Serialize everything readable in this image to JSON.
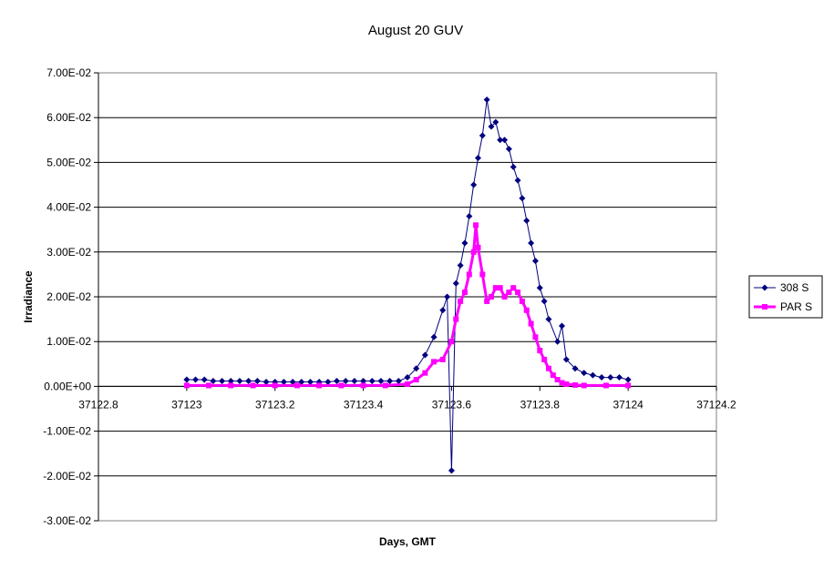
{
  "chart_data": {
    "type": "scatter",
    "title": "August 20 GUV",
    "xlabel": "Days, GMT",
    "ylabel": "Irradiance",
    "xlim": [
      37122.8,
      37124.2
    ],
    "ylim": [
      -0.03,
      0.07
    ],
    "x_ticks": [
      37122.8,
      37123,
      37123.2,
      37123.4,
      37123.6,
      37123.8,
      37124,
      37124.2
    ],
    "x_tick_labels": [
      "37122.8",
      "37123",
      "37123.2",
      "37123.4",
      "37123.6",
      "37123.8",
      "37124",
      "37124.2"
    ],
    "y_ticks": [
      0.07,
      0.06,
      0.05,
      0.04,
      0.03,
      0.02,
      0.01,
      0,
      -0.01,
      -0.02,
      -0.03
    ],
    "y_tick_labels": [
      "7.00E-02",
      "6.00E-02",
      "5.00E-02",
      "4.00E-02",
      "3.00E-02",
      "2.00E-02",
      "1.00E-02",
      "0.00E+00",
      "-1.00E-02",
      "-2.00E-02",
      "-3.00E-02"
    ],
    "grid": "horizontal",
    "legend_position": "right",
    "series": [
      {
        "name": "308 S",
        "color": "#000080",
        "marker": "diamond",
        "x": [
          37123.0,
          37123.02,
          37123.04,
          37123.06,
          37123.08,
          37123.1,
          37123.12,
          37123.14,
          37123.16,
          37123.18,
          37123.2,
          37123.22,
          37123.24,
          37123.26,
          37123.28,
          37123.3,
          37123.32,
          37123.34,
          37123.36,
          37123.38,
          37123.4,
          37123.42,
          37123.44,
          37123.46,
          37123.48,
          37123.5,
          37123.52,
          37123.54,
          37123.56,
          37123.58,
          37123.59,
          37123.6,
          37123.61,
          37123.62,
          37123.63,
          37123.64,
          37123.65,
          37123.66,
          37123.67,
          37123.68,
          37123.69,
          37123.7,
          37123.71,
          37123.72,
          37123.73,
          37123.74,
          37123.75,
          37123.76,
          37123.77,
          37123.78,
          37123.79,
          37123.8,
          37123.81,
          37123.82,
          37123.84,
          37123.85,
          37123.86,
          37123.88,
          37123.9,
          37123.92,
          37123.94,
          37123.96,
          37123.98,
          37124.0
        ],
        "y": [
          0.0015,
          0.0015,
          0.0015,
          0.0012,
          0.0012,
          0.0012,
          0.0012,
          0.0012,
          0.0012,
          0.001,
          0.001,
          0.001,
          0.001,
          0.001,
          0.001,
          0.001,
          0.001,
          0.0012,
          0.0012,
          0.0012,
          0.0012,
          0.0012,
          0.0012,
          0.0012,
          0.0012,
          0.002,
          0.004,
          0.007,
          0.011,
          0.017,
          0.02,
          -0.0188,
          0.023,
          0.027,
          0.032,
          0.038,
          0.045,
          0.051,
          0.056,
          0.064,
          0.058,
          0.059,
          0.055,
          0.055,
          0.053,
          0.049,
          0.046,
          0.042,
          0.037,
          0.032,
          0.028,
          0.022,
          0.019,
          0.015,
          0.01,
          0.0135,
          0.006,
          0.004,
          0.003,
          0.0025,
          0.002,
          0.002,
          0.002,
          0.0015
        ]
      },
      {
        "name": "PAR S",
        "color": "#FF00FF",
        "marker": "square",
        "x": [
          37123.0,
          37123.05,
          37123.1,
          37123.15,
          37123.2,
          37123.25,
          37123.3,
          37123.35,
          37123.4,
          37123.45,
          37123.5,
          37123.52,
          37123.54,
          37123.56,
          37123.58,
          37123.6,
          37123.61,
          37123.62,
          37123.63,
          37123.64,
          37123.65,
          37123.655,
          37123.66,
          37123.67,
          37123.68,
          37123.69,
          37123.7,
          37123.71,
          37123.72,
          37123.73,
          37123.74,
          37123.75,
          37123.76,
          37123.77,
          37123.78,
          37123.79,
          37123.8,
          37123.81,
          37123.82,
          37123.83,
          37123.84,
          37123.85,
          37123.86,
          37123.88,
          37123.9,
          37123.95,
          37124.0
        ],
        "y": [
          0.0002,
          0.0002,
          0.0002,
          0.0002,
          0.0002,
          0.0002,
          0.0002,
          0.0002,
          0.0002,
          0.0002,
          0.0005,
          0.0015,
          0.003,
          0.0055,
          0.006,
          0.01,
          0.015,
          0.019,
          0.021,
          0.025,
          0.03,
          0.036,
          0.031,
          0.025,
          0.019,
          0.02,
          0.022,
          0.022,
          0.02,
          0.021,
          0.022,
          0.021,
          0.019,
          0.017,
          0.014,
          0.011,
          0.008,
          0.006,
          0.004,
          0.0025,
          0.0015,
          0.0008,
          0.0005,
          0.0003,
          0.0002,
          0.0002,
          0.0002
        ]
      }
    ]
  }
}
